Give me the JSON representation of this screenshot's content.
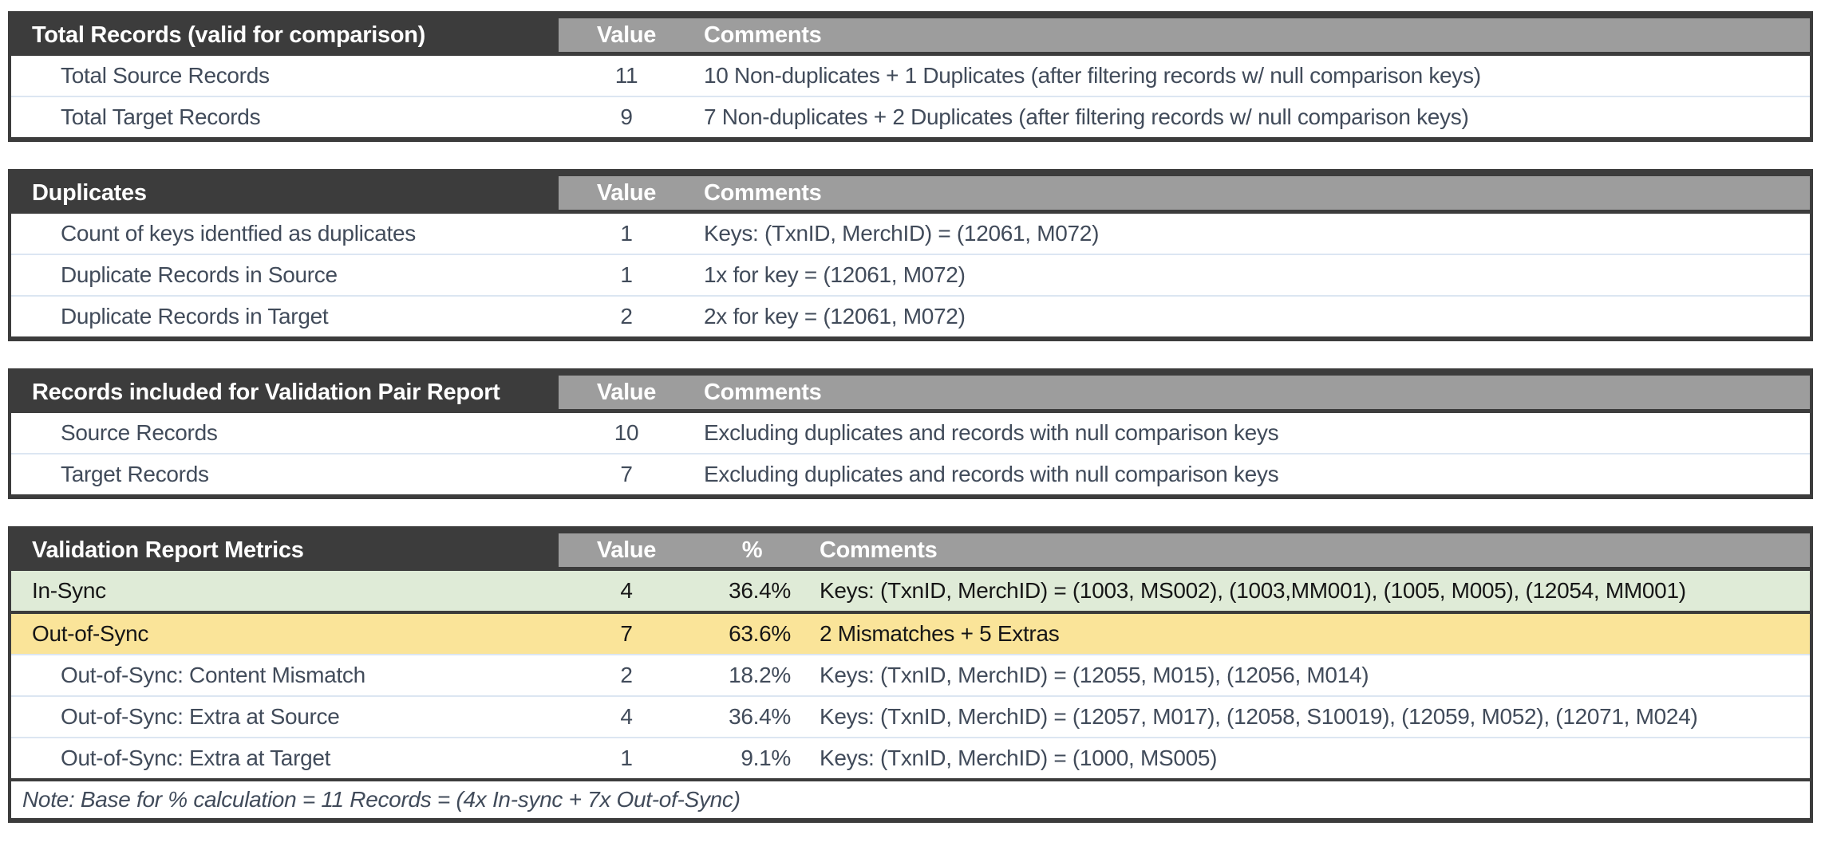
{
  "colors": {
    "header_dark": "#3C3C3C",
    "header_gray": "#9D9D9D",
    "in_sync_green": "#DFEBD7",
    "out_of_sync_yellow": "#FAE499",
    "row_divider_blue": "#DCE6F2",
    "body_text": "#414B5A",
    "highlight_text": "#161616"
  },
  "tables": [
    {
      "title": "Total Records (valid for comparison)",
      "columns": {
        "value": "Value",
        "comments": "Comments"
      },
      "rows": [
        {
          "label": "Total Source Records",
          "value": "11",
          "comment": "10 Non-duplicates + 1 Duplicates (after filtering records w/ null comparison keys)"
        },
        {
          "label": "Total Target Records",
          "value": "9",
          "comment": "7 Non-duplicates + 2 Duplicates (after filtering records w/ null comparison keys)"
        }
      ]
    },
    {
      "title": "Duplicates",
      "columns": {
        "value": "Value",
        "comments": "Comments"
      },
      "rows": [
        {
          "label": "Count of keys identfied as duplicates",
          "value": "1",
          "comment": "Keys: (TxnID, MerchID) =  (12061, M072)"
        },
        {
          "label": "Duplicate Records in Source",
          "value": "1",
          "comment": "1x for key = (12061, M072)"
        },
        {
          "label": "Duplicate Records in Target",
          "value": "2",
          "comment": "2x for key = (12061, M072)"
        }
      ]
    },
    {
      "title": "Records included for Validation Pair Report",
      "columns": {
        "value": "Value",
        "comments": "Comments"
      },
      "rows": [
        {
          "label": "Source Records",
          "value": "10",
          "comment": "Excluding duplicates and records with null comparison keys"
        },
        {
          "label": "Target Records",
          "value": "7",
          "comment": "Excluding duplicates and records with null comparison keys"
        }
      ]
    },
    {
      "title": "Validation Report Metrics",
      "columns": {
        "value": "Value",
        "percent": "%",
        "comments": "Comments"
      },
      "rows": [
        {
          "label": "In-Sync",
          "value": "4",
          "percent": "36.4%",
          "comment": "Keys: (TxnID, MerchID) = (1003, MS002), (1003,MM001), (1005, M005), (12054, MM001)"
        },
        {
          "label": "Out-of-Sync",
          "value": "7",
          "percent": "63.6%",
          "comment": "2 Mismatches + 5 Extras"
        },
        {
          "label": "Out-of-Sync: Content Mismatch",
          "value": "2",
          "percent": "18.2%",
          "comment": "Keys: (TxnID, MerchID) = (12055, M015), (12056, M014)"
        },
        {
          "label": "Out-of-Sync: Extra at Source",
          "value": "4",
          "percent": "36.4%",
          "comment": "Keys: (TxnID, MerchID) = (12057, M017), (12058, S10019), (12059, M052), (12071, M024)"
        },
        {
          "label": "Out-of-Sync: Extra at Target",
          "value": "1",
          "percent": "9.1%",
          "comment": "Keys: (TxnID, MerchID) = (1000, MS005)"
        }
      ],
      "note": "Note: Base for % calculation = 11 Records = (4x In-sync + 7x Out-of-Sync)"
    }
  ]
}
